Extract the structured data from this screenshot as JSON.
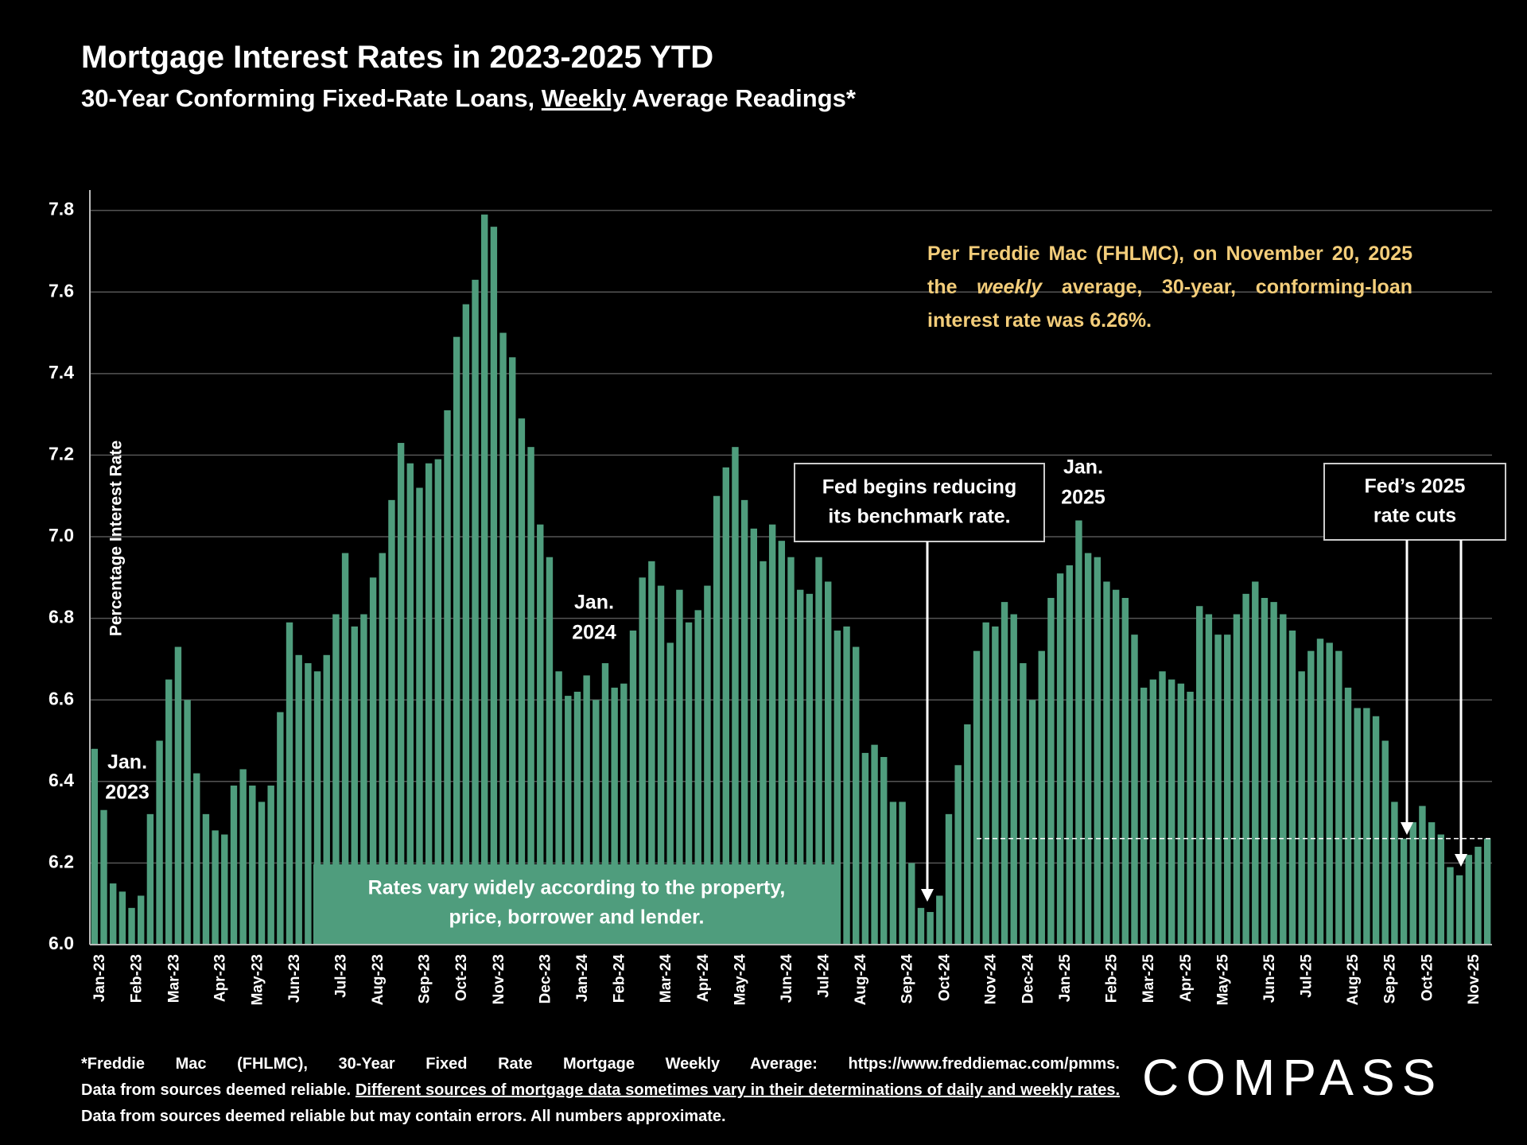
{
  "chart_data": {
    "type": "bar",
    "title": "Mortgage Interest Rates in 2023-2025 YTD",
    "subtitle": [
      "30-Year Conforming Fixed-Rate Loans,",
      "Weekly",
      "Average Readings*"
    ],
    "y_label": "Percentage Interest Rate",
    "categories": [
      "Jan-23",
      null,
      null,
      null,
      "Feb-23",
      null,
      null,
      null,
      "Mar-23",
      null,
      null,
      null,
      null,
      "Apr-23",
      null,
      null,
      null,
      "May-23",
      null,
      null,
      null,
      "Jun-23",
      null,
      null,
      null,
      null,
      "Jul-23",
      null,
      null,
      null,
      "Aug-23",
      null,
      null,
      null,
      null,
      "Sep-23",
      null,
      null,
      null,
      "Oct-23",
      null,
      null,
      null,
      "Nov-23",
      null,
      null,
      null,
      null,
      "Dec-23",
      null,
      null,
      null,
      "Jan-24",
      null,
      null,
      null,
      "Feb-24",
      null,
      null,
      null,
      null,
      "Mar-24",
      null,
      null,
      null,
      "Apr-24",
      null,
      null,
      null,
      "May-24",
      null,
      null,
      null,
      null,
      "Jun-24",
      null,
      null,
      null,
      "Jul-24",
      null,
      null,
      null,
      "Aug-24",
      null,
      null,
      null,
      null,
      "Sep-24",
      null,
      null,
      null,
      "Oct-24",
      null,
      null,
      null,
      null,
      "Nov-24",
      null,
      null,
      null,
      "Dec-24",
      null,
      null,
      null,
      "Jan-25",
      null,
      null,
      null,
      null,
      "Feb-25",
      null,
      null,
      null,
      "Mar-25",
      null,
      null,
      null,
      "Apr-25",
      null,
      null,
      null,
      "May-25",
      null,
      null,
      null,
      null,
      "Jun-25",
      null,
      null,
      null,
      "Jul-25",
      null,
      null,
      null,
      null,
      "Aug-25",
      null,
      null,
      null,
      "Sep-25",
      null,
      null,
      null,
      "Oct-25",
      null,
      null,
      null,
      null,
      "Nov-25",
      null,
      null
    ],
    "values": [
      6.48,
      6.33,
      6.15,
      6.13,
      6.09,
      6.12,
      6.32,
      6.5,
      6.65,
      6.73,
      6.6,
      6.42,
      6.32,
      6.28,
      6.27,
      6.39,
      6.43,
      6.39,
      6.35,
      6.39,
      6.57,
      6.79,
      6.71,
      6.69,
      6.67,
      6.71,
      6.81,
      6.96,
      6.78,
      6.81,
      6.9,
      6.96,
      7.09,
      7.23,
      7.18,
      7.12,
      7.18,
      7.19,
      7.31,
      7.49,
      7.57,
      7.63,
      7.79,
      7.76,
      7.5,
      7.44,
      7.29,
      7.22,
      7.03,
      6.95,
      6.67,
      6.61,
      6.62,
      6.66,
      6.6,
      6.69,
      6.63,
      6.64,
      6.77,
      6.9,
      6.94,
      6.88,
      6.74,
      6.87,
      6.79,
      6.82,
      6.88,
      7.1,
      7.17,
      7.22,
      7.09,
      7.02,
      6.94,
      7.03,
      6.99,
      6.95,
      6.87,
      6.86,
      6.95,
      6.89,
      6.77,
      6.78,
      6.73,
      6.47,
      6.49,
      6.46,
      6.35,
      6.35,
      6.2,
      6.09,
      6.08,
      6.12,
      6.32,
      6.44,
      6.54,
      6.72,
      6.79,
      6.78,
      6.84,
      6.81,
      6.69,
      6.6,
      6.72,
      6.85,
      6.91,
      6.93,
      7.04,
      6.96,
      6.95,
      6.89,
      6.87,
      6.85,
      6.76,
      6.63,
      6.65,
      6.67,
      6.65,
      6.64,
      6.62,
      6.83,
      6.81,
      6.76,
      6.76,
      6.81,
      6.86,
      6.89,
      6.85,
      6.84,
      6.81,
      6.77,
      6.67,
      6.72,
      6.75,
      6.74,
      6.72,
      6.63,
      6.58,
      6.58,
      6.56,
      6.5,
      6.35,
      6.26,
      6.3,
      6.34,
      6.3,
      6.27,
      6.19,
      6.17,
      6.22,
      6.24,
      6.26
    ],
    "color": "#4f9d7d",
    "ylim": [
      6.0,
      7.85
    ],
    "yticks": [
      {
        "value": 6.0,
        "label": "6.0"
      },
      6.2,
      6.4,
      6.6,
      6.8,
      {
        "value": 7.0,
        "label": "7.0"
      },
      7.2,
      7.4,
      7.6,
      7.8
    ],
    "grid": true,
    "reference_line": 6.26,
    "annotations": [
      [
        "Jan.",
        "2023"
      ],
      [
        "Jan.",
        "2024"
      ],
      [
        "Jan.",
        "2025"
      ],
      [
        "Fed begins reducing",
        "its benchmark rate."
      ],
      [
        "Fed’s 2025",
        "rate cuts"
      ],
      [
        "Rates vary widely according to the property,",
        "price, borrower and lender."
      ]
    ],
    "note": [
      "Per Freddie Mac (FHLMC), on November 20, 2025 the",
      "weekly",
      "average, 30-year, conforming-loan interest rate was 6.26%."
    ]
  },
  "footer": [
    "*Freddie Mac (FHLMC), 30-Year Fixed Rate Mortgage Weekly Average:  https://www.freddiemac.com/pmms.",
    "Data from sources deemed reliable.",
    "Different sources of mortgage data sometimes vary in their determinations of daily and weekly rates.",
    "Data from sources deemed reliable but may contain errors. All numbers approximate."
  ],
  "logo": "COMPASS"
}
